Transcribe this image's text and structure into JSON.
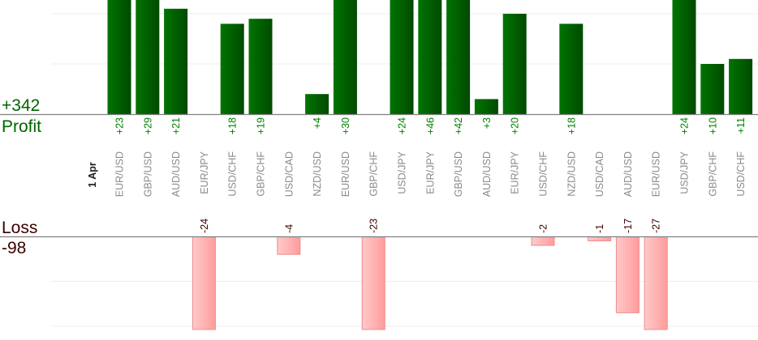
{
  "chart_data": {
    "type": "bar",
    "title": "",
    "profit": {
      "label": "Profit",
      "total_label": "+342",
      "total": 342,
      "color": "#006400"
    },
    "loss": {
      "label": "Loss",
      "total_label": "-98",
      "total": -98,
      "color": "#3b0000"
    },
    "date_label": "1 Apr",
    "categories": [
      "EUR/USD",
      "GBP/USD",
      "AUD/USD",
      "EUR/JPY",
      "USD/CHF",
      "GBP/CHF",
      "USD/CAD",
      "NZD/USD",
      "EUR/USD",
      "GBP/CHF",
      "USD/JPY",
      "EUR/JPY",
      "GBP/USD",
      "AUD/USD",
      "EUR/JPY",
      "USD/CHF",
      "NZD/USD",
      "USD/CAD",
      "AUD/USD",
      "EUR/USD",
      "USD/JPY",
      "GBP/CHF",
      "USD/CHF"
    ],
    "values": [
      23,
      29,
      21,
      -24,
      18,
      19,
      -4,
      4,
      30,
      -23,
      24,
      46,
      42,
      3,
      20,
      -2,
      18,
      -1,
      -17,
      -27,
      24,
      10,
      11
    ],
    "value_labels": [
      "+23",
      "+29",
      "+21",
      "-24",
      "+18",
      "+19",
      "-4",
      "+4",
      "+30",
      "-23",
      "+24",
      "+46",
      "+42",
      "+3",
      "+20",
      "-2",
      "+18",
      "-1",
      "-17",
      "-27",
      "+24",
      "+10",
      "+11"
    ],
    "grid_step": 10,
    "grid": true,
    "colors": {
      "profit_dark": "#004d00",
      "profit_light": "#007000",
      "loss_light": "#ffc8c8",
      "loss_dark": "#ff9a9a",
      "loss_border": "#f08a8a",
      "pair_label": "#8a8a8a",
      "profit_label": "#008000",
      "loss_label": "#3b0000"
    }
  }
}
